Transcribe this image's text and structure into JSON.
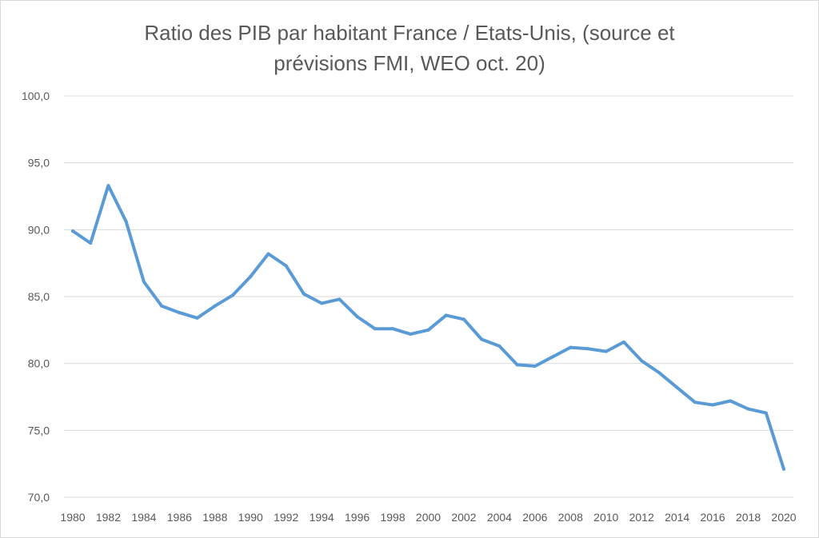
{
  "chart_data": {
    "type": "line",
    "title_lines": [
      "Ratio des PIB par habitant France / Etats-Unis, (source et",
      "prévisions FMI, WEO oct. 20)"
    ],
    "xlabel": "",
    "ylabel": "",
    "ylim": [
      70,
      100
    ],
    "y_ticks": [
      "100,0",
      "95,0",
      "90,0",
      "85,0",
      "80,0",
      "75,0",
      "70,0"
    ],
    "x_ticks": [
      "1980",
      "1982",
      "1984",
      "1986",
      "1988",
      "1990",
      "1992",
      "1994",
      "1996",
      "1998",
      "2000",
      "2002",
      "2004",
      "2006",
      "2008",
      "2010",
      "2012",
      "2014",
      "2016",
      "2018",
      "2020"
    ],
    "grid": true,
    "legend": "none",
    "line_color": "#5b9bd5",
    "x": [
      1980,
      1981,
      1982,
      1983,
      1984,
      1985,
      1986,
      1987,
      1988,
      1989,
      1990,
      1991,
      1992,
      1993,
      1994,
      1995,
      1996,
      1997,
      1998,
      1999,
      2000,
      2001,
      2002,
      2003,
      2004,
      2005,
      2006,
      2007,
      2008,
      2009,
      2010,
      2011,
      2012,
      2013,
      2014,
      2015,
      2016,
      2017,
      2018,
      2019,
      2020
    ],
    "series": [
      {
        "values": [
          89.9,
          89.0,
          93.3,
          90.6,
          86.1,
          84.3,
          83.8,
          83.4,
          84.3,
          85.1,
          86.5,
          88.2,
          87.3,
          85.2,
          84.5,
          84.8,
          83.5,
          82.6,
          82.6,
          82.2,
          82.5,
          83.6,
          83.3,
          81.8,
          81.3,
          79.9,
          79.8,
          80.5,
          81.2,
          81.1,
          80.9,
          81.6,
          80.2,
          79.3,
          78.2,
          77.1,
          76.9,
          77.2,
          76.6,
          76.3,
          72.1
        ]
      }
    ]
  }
}
